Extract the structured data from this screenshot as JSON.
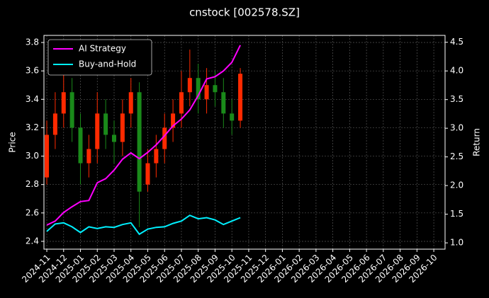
{
  "chart_data": {
    "type": "candlestick-lines",
    "title": "cnstock [002578.SZ]",
    "ylabel": "Price",
    "y2label": "Return",
    "x": [
      0,
      0.5,
      1,
      1.5,
      2,
      2.5,
      3,
      3.5,
      4,
      4.5,
      5,
      5.5,
      6,
      6.5,
      7,
      7.5,
      8,
      8.5,
      9,
      9.5,
      10,
      10.5,
      11,
      11.5
    ],
    "xlim": [
      -0.17,
      23.67
    ],
    "xticks": [
      {
        "value": 0,
        "label": "2024-11"
      },
      {
        "value": 1,
        "label": "2024-12"
      },
      {
        "value": 2,
        "label": "2025-01"
      },
      {
        "value": 3,
        "label": "2025-02"
      },
      {
        "value": 4,
        "label": "2025-03"
      },
      {
        "value": 5,
        "label": "2025-04"
      },
      {
        "value": 6,
        "label": "2025-05"
      },
      {
        "value": 7,
        "label": "2025-06"
      },
      {
        "value": 8,
        "label": "2025-07"
      },
      {
        "value": 9,
        "label": "2025-08"
      },
      {
        "value": 10,
        "label": "2025-09"
      },
      {
        "value": 11,
        "label": "2025-10"
      },
      {
        "value": 12,
        "label": "2025-11"
      },
      {
        "value": 13,
        "label": "2025-12"
      },
      {
        "value": 14,
        "label": "2026-01"
      },
      {
        "value": 15,
        "label": "2026-02"
      },
      {
        "value": 16,
        "label": "2026-03"
      },
      {
        "value": 17,
        "label": "2026-04"
      },
      {
        "value": 18,
        "label": "2026-05"
      },
      {
        "value": 19,
        "label": "2026-06"
      },
      {
        "value": 20,
        "label": "2026-07"
      },
      {
        "value": 21,
        "label": "2026-08"
      },
      {
        "value": 22,
        "label": "2026-09"
      },
      {
        "value": 23,
        "label": "2026-10"
      }
    ],
    "ylim": [
      2.345,
      3.85
    ],
    "yticks": [
      2.4,
      2.6,
      2.8,
      {
        "value": 3,
        "label": "3.0"
      },
      3.2,
      3.4,
      3.6,
      3.8
    ],
    "y2lim": [
      0.89,
      4.62
    ],
    "y2ticks": [
      {
        "value": 1,
        "label": "1.0"
      },
      1.5,
      {
        "value": 2,
        "label": "2.0"
      },
      2.5,
      {
        "value": 3,
        "label": "3.0"
      },
      3.5,
      {
        "value": 4,
        "label": "4.0"
      },
      4.5
    ],
    "grid": true,
    "legend": "upper-left",
    "up_color": "#ff2a00",
    "down_color": "#1a8a1a",
    "candles": {
      "open": [
        2.85,
        3.15,
        3.3,
        3.45,
        3.2,
        2.95,
        3.05,
        3.3,
        3.15,
        3.1,
        3.3,
        3.45,
        2.8,
        2.95,
        3.05,
        3.2,
        3.3,
        3.45,
        3.55,
        3.4,
        3.5,
        3.45,
        3.3,
        3.25
      ],
      "close": [
        3.15,
        3.3,
        3.45,
        3.2,
        2.95,
        3.05,
        3.3,
        3.15,
        3.1,
        3.3,
        3.45,
        2.75,
        2.95,
        3.05,
        3.2,
        3.3,
        3.45,
        3.55,
        3.4,
        3.5,
        3.45,
        3.3,
        3.25,
        3.58
      ],
      "high": [
        3.25,
        3.45,
        3.6,
        3.55,
        3.3,
        3.15,
        3.45,
        3.4,
        3.25,
        3.4,
        3.55,
        3.52,
        3.05,
        3.15,
        3.3,
        3.4,
        3.6,
        3.75,
        3.65,
        3.62,
        3.6,
        3.55,
        3.4,
        3.62
      ],
      "low": [
        2.8,
        3.05,
        3.2,
        3.1,
        2.8,
        2.85,
        2.95,
        3.05,
        2.95,
        3.0,
        3.2,
        2.5,
        2.75,
        2.85,
        2.95,
        3.1,
        3.2,
        3.35,
        3.3,
        3.3,
        3.35,
        3.2,
        3.15,
        3.2
      ]
    },
    "series": [
      {
        "name": "AI Strategy",
        "color": "#ff00ff",
        "axis": "y2",
        "values": [
          1.31,
          1.38,
          1.53,
          1.63,
          1.72,
          1.74,
          2.05,
          2.12,
          2.27,
          2.46,
          2.57,
          2.47,
          2.58,
          2.71,
          2.87,
          3.04,
          3.16,
          3.32,
          3.57,
          3.86,
          3.9,
          4.0,
          4.15,
          4.45
        ]
      },
      {
        "name": "Buy-and-Hold",
        "color": "#00f0ff",
        "axis": "y2",
        "values": [
          1.2,
          1.33,
          1.35,
          1.28,
          1.18,
          1.28,
          1.25,
          1.28,
          1.27,
          1.32,
          1.35,
          1.15,
          1.24,
          1.27,
          1.28,
          1.34,
          1.38,
          1.48,
          1.42,
          1.44,
          1.4,
          1.32,
          1.38,
          1.44
        ]
      }
    ]
  }
}
